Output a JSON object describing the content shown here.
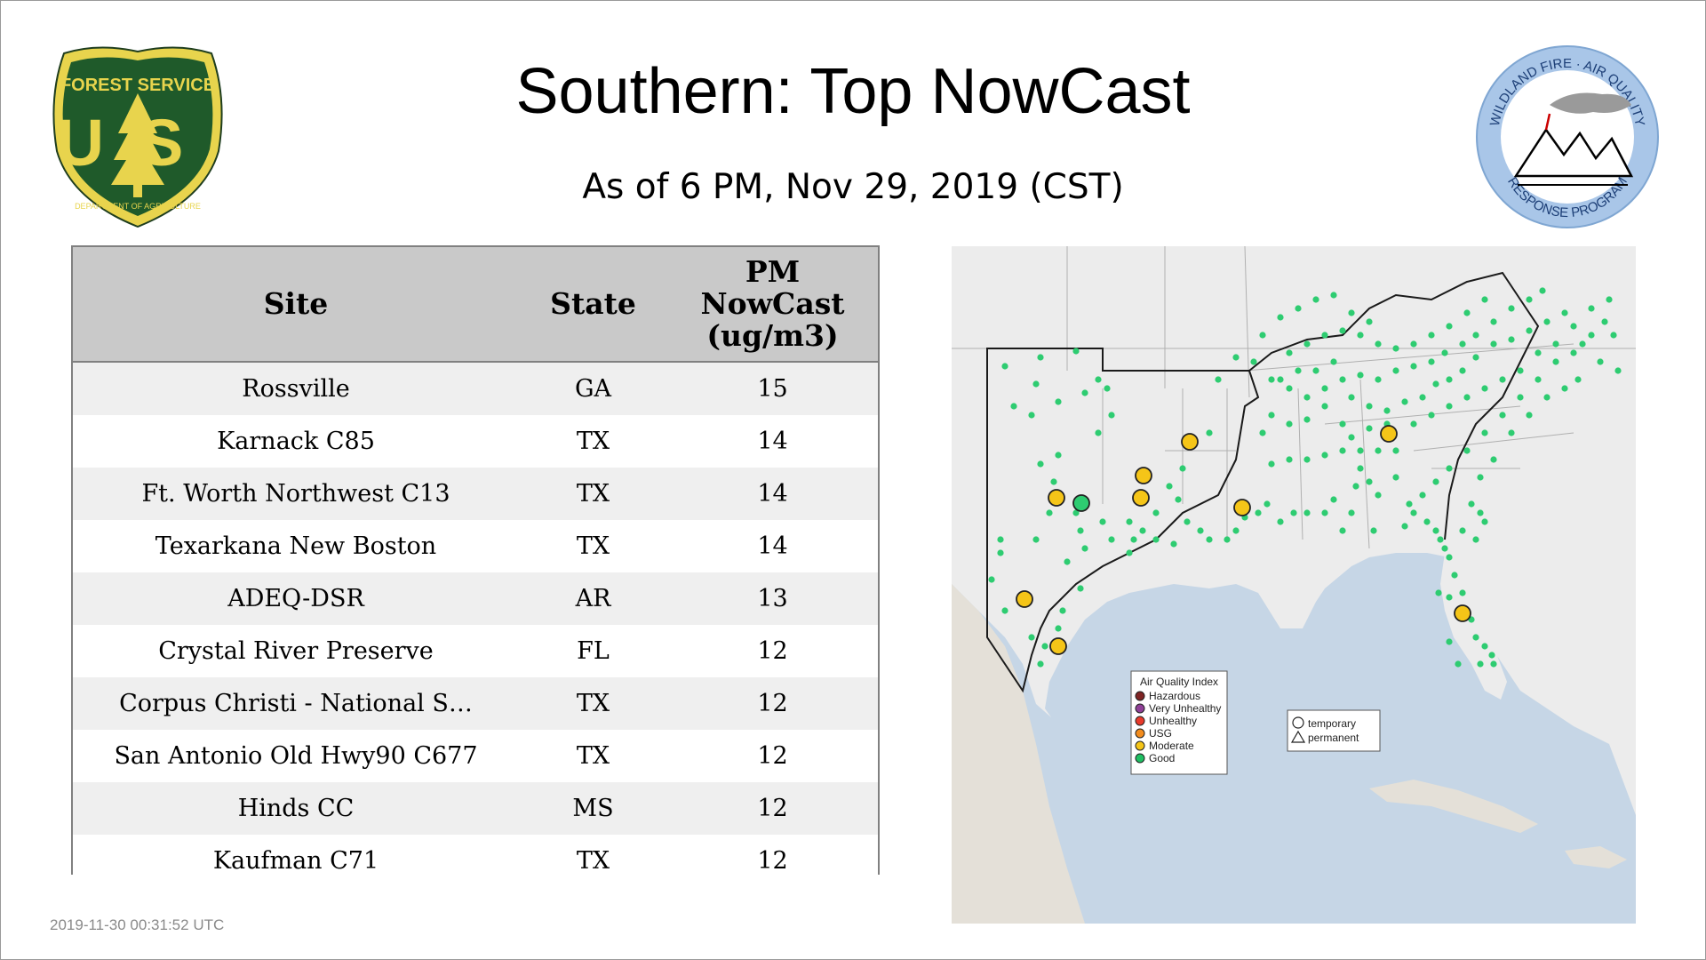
{
  "header": {
    "title": "Southern: Top NowCast",
    "subtitle": "As of  6 PM, Nov 29, 2019 (CST)"
  },
  "logos": {
    "usfs": {
      "top": "FOREST SERVICE",
      "letters": "US",
      "bottom": "DEPARTMENT OF AGRICULTURE"
    },
    "wfaq": {
      "top": "WILDLAND FIRE · AIR QUALITY",
      "bottom": "RESPONSE PROGRAM"
    }
  },
  "table": {
    "headers": {
      "site": "Site",
      "state": "State",
      "pm_1": "PM",
      "pm_2": "NowCast",
      "pm_3": "(ug/m3)"
    },
    "rows": [
      {
        "site": "Rossville",
        "state": "GA",
        "value": "15"
      },
      {
        "site": "Karnack C85",
        "state": "TX",
        "value": "14"
      },
      {
        "site": "Ft. Worth Northwest C13",
        "state": "TX",
        "value": "14"
      },
      {
        "site": "Texarkana New Boston",
        "state": "TX",
        "value": "14"
      },
      {
        "site": "ADEQ-DSR",
        "state": "AR",
        "value": "13"
      },
      {
        "site": "Crystal River Preserve",
        "state": "FL",
        "value": "12"
      },
      {
        "site": "Corpus Christi - National S…",
        "state": "TX",
        "value": "12"
      },
      {
        "site": "San Antonio Old Hwy90 C677",
        "state": "TX",
        "value": "12"
      },
      {
        "site": "Hinds CC",
        "state": "MS",
        "value": "12"
      },
      {
        "site": "Kaufman C71",
        "state": "TX",
        "value": "12"
      }
    ]
  },
  "map": {
    "legend_title": "Air Quality Index",
    "legend_items": [
      {
        "label": "Hazardous",
        "color": "#7e2424"
      },
      {
        "label": "Very Unhealthy",
        "color": "#8f3f97"
      },
      {
        "label": "Unhealthy",
        "color": "#e83a2b"
      },
      {
        "label": "USG",
        "color": "#f28c1e"
      },
      {
        "label": "Moderate",
        "color": "#f5c518"
      },
      {
        "label": "Good",
        "color": "#1fbf62"
      }
    ],
    "shape_legend": {
      "temporary": "temporary",
      "permanent": "permanent"
    },
    "colors": {
      "water": "#c6d6e6",
      "land": "#ececec",
      "good": "#2ecc71",
      "moderate": "#f5c518"
    }
  },
  "footer": {
    "timestamp": "2019-11-30 00:31:52 UTC"
  }
}
